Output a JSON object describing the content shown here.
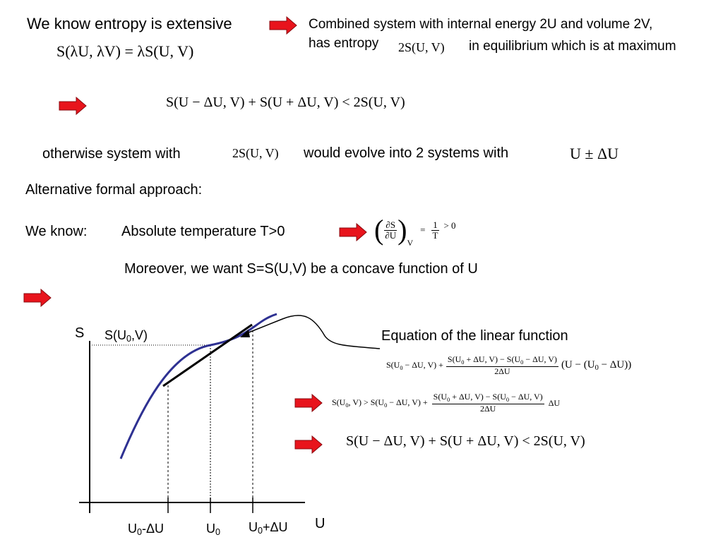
{
  "top": {
    "entropy_extensive": "We know entropy is extensive",
    "extensive_eq": "S(λU, λV) = λS(U, V)",
    "combined_line1": "Combined system with internal energy 2U and volume 2V,",
    "combined_has_entropy": "has entropy",
    "combined_eq": "2S(U, V)",
    "combined_rest": "in equilibrium which is at maximum"
  },
  "inequality1": "S(U − ΔU, V) + S(U + ΔU, V) < 2S(U, V)",
  "otherwise": {
    "text1": "otherwise system with",
    "eq": "2S(U, V)",
    "text2": "would evolve into 2 systems with",
    "eq2": "U ± ΔU"
  },
  "alt_approach": "Alternative formal approach:",
  "we_know": {
    "label": "We know:",
    "text": "Absolute temperature T>0",
    "partial_num": "∂S",
    "partial_den": "∂U",
    "partial_sub": "V",
    "eq_sign": "=",
    "frac_num": "1",
    "frac_den": "T",
    "gt": "> 0"
  },
  "moreover": "Moreover, we want S=S(U,V) be a concave function of U",
  "graph": {
    "y_axis_label": "S",
    "curve_label_main": "S(U",
    "curve_label_sub": "0",
    "curve_label_end": ",V)",
    "x_axis_label": "U",
    "tick_left_main": "U",
    "tick_left_sub": "0",
    "tick_left_end": "-ΔU",
    "tick_mid_main": "U",
    "tick_mid_sub": "0",
    "tick_right_main": "U",
    "tick_right_sub": "0",
    "tick_right_end": "+ΔU"
  },
  "linear_fn": {
    "title": "Equation of the linear function",
    "lhs": "S(U",
    "lhs_sub": "0",
    "lhs_rest": " − ΔU, V) +",
    "num_a": "S(U",
    "num_a_sub": "0",
    "num_a_rest": " + ΔU, V) − S(U",
    "num_b_sub": "0",
    "num_b_rest": " − ΔU, V)",
    "den": "2ΔU",
    "tail_a": "(U − (U",
    "tail_sub": "0",
    "tail_b": " − ΔU))"
  },
  "ineq2": {
    "lhs": "S(U",
    "lhs_sub": "0",
    "lhs_rest": ", V) > S(U",
    "lhs_sub2": "0",
    "lhs_rest2": " − ΔU, V) +",
    "num_a": "S(U",
    "num_a_sub": "0",
    "num_a_rest": " + ΔU, V) − S(U",
    "num_b_sub": "0",
    "num_b_rest": " − ΔU, V)",
    "den": "2ΔU",
    "tail": "ΔU"
  },
  "inequality_final": "S(U − ΔU, V) + S(U + ΔU, V) < 2S(U, V)",
  "colors": {
    "arrow_fill": "#e8141c",
    "arrow_stroke": "#8a0a0f",
    "curve": "#2e3192",
    "chord": "#000000",
    "axes": "#000000"
  },
  "icons": {
    "arrow": "red-right-arrow-icon"
  }
}
